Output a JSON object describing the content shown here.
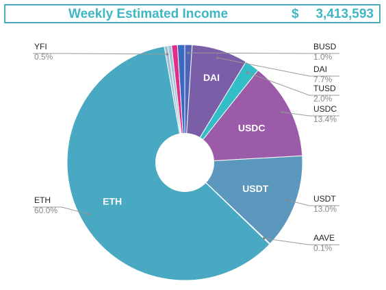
{
  "header": {
    "title": "Weekly Estimated Income",
    "currency": "$",
    "value": "3,413,593"
  },
  "chart_data": {
    "type": "pie",
    "title": "",
    "legend": "none",
    "donut": true,
    "slices": [
      {
        "name": "BUSD",
        "value": 1.0,
        "pct_label": "1.0%",
        "color": "#4f63b8",
        "inside": false
      },
      {
        "name": "DAI",
        "value": 7.7,
        "pct_label": "7.7%",
        "color": "#7a5fa8",
        "inside": true
      },
      {
        "name": "TUSD",
        "value": 2.0,
        "pct_label": "2.0%",
        "color": "#33bdc7",
        "inside": false
      },
      {
        "name": "USDC",
        "value": 13.4,
        "pct_label": "13.4%",
        "color": "#9c5ba8",
        "inside": true
      },
      {
        "name": "USDT",
        "value": 13.0,
        "pct_label": "13.0%",
        "color": "#5c97bd",
        "inside": true
      },
      {
        "name": "AAVE",
        "value": 0.1,
        "pct_label": "0.1%",
        "color": "#8fb0cc",
        "inside": false
      },
      {
        "name": "ETH",
        "value": 60.0,
        "pct_label": "60.0%",
        "color": "#49a9c2",
        "inside": true
      },
      {
        "name": "YFI",
        "value": 0.5,
        "pct_label": "0.5%",
        "color": "#a3c1d6",
        "inside": false
      },
      {
        "name": "",
        "value": 0.5,
        "pct_label": "",
        "color": "#9fc6d8",
        "inside": false
      },
      {
        "name": "",
        "value": 0.8,
        "pct_label": "",
        "color": "#e02e8a",
        "inside": false
      },
      {
        "name": "",
        "value": 1.0,
        "pct_label": "",
        "color": "#3c6ac0",
        "inside": false
      }
    ]
  }
}
